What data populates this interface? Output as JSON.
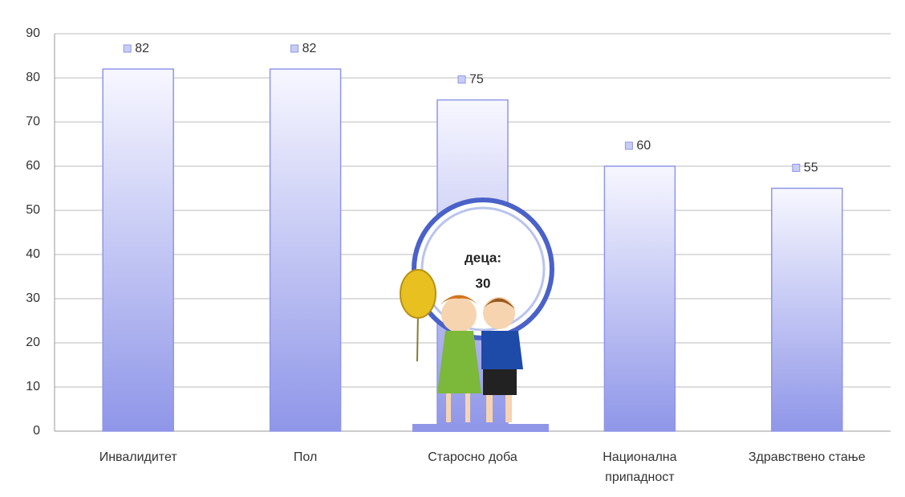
{
  "chart_data": {
    "type": "bar",
    "categories": [
      "Инвалидитет",
      "Пол",
      "Старосно доба",
      "Национална\nприпадност",
      "Здравствено стање"
    ],
    "values": [
      82,
      82,
      75,
      60,
      55
    ],
    "ylim": [
      0,
      90
    ],
    "yticks": [
      0,
      10,
      20,
      30,
      40,
      50,
      60,
      70,
      80,
      90
    ],
    "grid": true,
    "color": "#8f96e8",
    "annotation": {
      "label": "деца:",
      "value": 30
    }
  }
}
